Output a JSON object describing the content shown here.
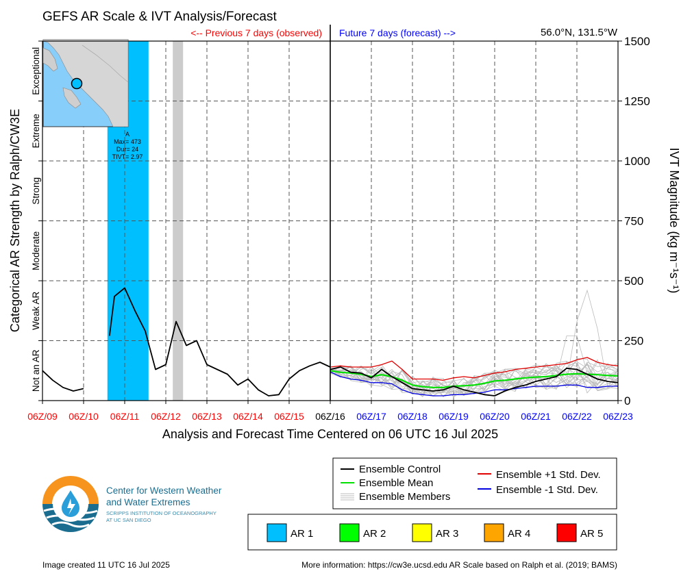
{
  "page": {
    "title": "GEFS AR Scale & IVT Analysis/Forecast",
    "location": "56.0°N, 131.5°W",
    "previous_label": "<-- Previous 7 days (observed)",
    "future_label": "Future 7 days (forecast) -->",
    "xlabel": "Analysis and Forecast Time Centered on 06 UTC 16 Jul 2025",
    "ylabel_left": "Categorical AR Strength by Ralph/CW3E",
    "ylabel_right": "IVT Magnitude (kg m⁻¹s⁻¹)",
    "created": "Image created 11 UTC 16 Jul 2025",
    "more_info": "More information: https://cw3e.ucsd.edu AR Scale based on Ralph et al. (2019; BAMS)",
    "logo_line1": "Center for Western Weather",
    "logo_line2": "and Water Extremes",
    "logo_line3": "SCRIPPS INSTITUTION OF OCEANOGRAPHY",
    "logo_line4": "AT UC SAN DIEGO"
  },
  "colors": {
    "ar1": "#00bfff",
    "ar2": "#00ff00",
    "ar3": "#ffff00",
    "ar4": "#ffa500",
    "ar5": "#ff0000",
    "control": "#000000",
    "mean": "#00e000",
    "members": "#bbbbbb",
    "plus_std": "#e00000",
    "minus_std": "#0000e0",
    "past_tick": "#ff0000",
    "future_tick": "#0000ff",
    "spread": "#cccccc"
  },
  "legend": {
    "control": "Ensemble Control",
    "mean": "Ensemble Mean",
    "members": "Ensemble Members",
    "plus_std": "Ensemble +1 Std. Dev.",
    "minus_std": "Ensemble -1 Std. Dev."
  },
  "ar_legend": [
    "AR 1",
    "AR 2",
    "AR 3",
    "AR 4",
    "AR 5"
  ],
  "annotation": {
    "label": "A",
    "max": "Max= 473",
    "dur": "Dur= 24",
    "tivt": "TIVT= 2.97"
  },
  "chart_data": {
    "type": "line",
    "xlabel": "Analysis and Forecast Time Centered on 06 UTC 16 Jul 2025",
    "ylabel": "IVT Magnitude (kg m⁻¹s⁻¹)",
    "xlim": [
      0,
      14
    ],
    "ylim": [
      0,
      1500
    ],
    "x_unit": "days from 06Z/09",
    "grid": true,
    "x_ticks": [
      {
        "x": 0,
        "label": "06Z/09",
        "period": "past"
      },
      {
        "x": 1,
        "label": "06Z/10",
        "period": "past"
      },
      {
        "x": 2,
        "label": "06Z/11",
        "period": "past"
      },
      {
        "x": 3,
        "label": "06Z/12",
        "period": "past"
      },
      {
        "x": 4,
        "label": "06Z/13",
        "period": "past"
      },
      {
        "x": 5,
        "label": "06Z/14",
        "period": "past"
      },
      {
        "x": 6,
        "label": "06Z/15",
        "period": "past"
      },
      {
        "x": 7,
        "label": "06Z/16",
        "period": "now"
      },
      {
        "x": 8,
        "label": "06Z/17",
        "period": "future"
      },
      {
        "x": 9,
        "label": "06Z/18",
        "period": "future"
      },
      {
        "x": 10,
        "label": "06Z/19",
        "period": "future"
      },
      {
        "x": 11,
        "label": "06Z/20",
        "period": "future"
      },
      {
        "x": 12,
        "label": "06Z/21",
        "period": "future"
      },
      {
        "x": 13,
        "label": "06Z/22",
        "period": "future"
      },
      {
        "x": 14,
        "label": "06Z/23",
        "period": "future"
      }
    ],
    "y_ticks": [
      0,
      250,
      500,
      750,
      1000,
      1250,
      1500
    ],
    "categories": [
      {
        "label": "Not an AR",
        "from": 0,
        "to": 250
      },
      {
        "label": "Weak AR",
        "from": 250,
        "to": 500
      },
      {
        "label": "Moderate",
        "from": 500,
        "to": 750
      },
      {
        "label": "Strong",
        "from": 750,
        "to": 1000
      },
      {
        "label": "Extreme",
        "from": 1000,
        "to": 1250
      },
      {
        "label": "Exceptional",
        "from": 1250,
        "to": 1500
      }
    ],
    "ar_events": [
      {
        "category": "AR 1",
        "start": 1.58,
        "end": 2.58
      }
    ],
    "gray_bands": [
      {
        "start": 3.17,
        "end": 3.42
      }
    ],
    "observed": [
      [
        [
          0,
          125
        ],
        [
          0.25,
          85
        ],
        [
          0.5,
          55
        ],
        [
          0.75,
          40
        ],
        [
          1.0,
          50
        ]
      ],
      [
        [
          1.63,
          270
        ],
        [
          1.75,
          435
        ],
        [
          2.0,
          470
        ],
        [
          2.25,
          375
        ],
        [
          2.5,
          290
        ],
        [
          2.75,
          130
        ],
        [
          3.0,
          150
        ],
        [
          3.25,
          330
        ],
        [
          3.5,
          230
        ],
        [
          3.75,
          250
        ],
        [
          4.0,
          150
        ],
        [
          4.5,
          110
        ],
        [
          4.75,
          65
        ],
        [
          5.0,
          90
        ],
        [
          5.25,
          45
        ],
        [
          5.5,
          20
        ],
        [
          5.75,
          25
        ],
        [
          6.0,
          90
        ],
        [
          6.25,
          125
        ],
        [
          6.5,
          145
        ],
        [
          6.75,
          160
        ],
        [
          7.0,
          140
        ]
      ]
    ],
    "series": [
      {
        "name": "Ensemble Control",
        "points": [
          [
            7.0,
            130
          ],
          [
            7.25,
            140
          ],
          [
            7.5,
            118
          ],
          [
            7.75,
            115
          ],
          [
            8.0,
            95
          ],
          [
            8.25,
            130
          ],
          [
            8.5,
            100
          ],
          [
            8.75,
            75
          ],
          [
            9.0,
            50
          ],
          [
            9.25,
            45
          ],
          [
            9.5,
            40
          ],
          [
            9.75,
            45
          ],
          [
            10.0,
            60
          ],
          [
            10.25,
            45
          ],
          [
            10.5,
            35
          ],
          [
            10.75,
            25
          ],
          [
            11.0,
            20
          ],
          [
            11.25,
            40
          ],
          [
            11.5,
            55
          ],
          [
            11.75,
            65
          ],
          [
            12.0,
            80
          ],
          [
            12.25,
            90
          ],
          [
            12.5,
            100
          ],
          [
            12.75,
            135
          ],
          [
            13.0,
            130
          ],
          [
            13.25,
            110
          ],
          [
            13.5,
            90
          ],
          [
            13.75,
            80
          ],
          [
            14.0,
            75
          ]
        ]
      },
      {
        "name": "Ensemble Mean",
        "points": [
          [
            7.0,
            125
          ],
          [
            7.25,
            118
          ],
          [
            7.5,
            115
          ],
          [
            7.75,
            110
          ],
          [
            8.0,
            100
          ],
          [
            8.25,
            108
          ],
          [
            8.5,
            100
          ],
          [
            8.75,
            85
          ],
          [
            9.0,
            65
          ],
          [
            9.25,
            58
          ],
          [
            9.5,
            55
          ],
          [
            9.75,
            55
          ],
          [
            10.0,
            60
          ],
          [
            10.25,
            62
          ],
          [
            10.5,
            65
          ],
          [
            10.75,
            72
          ],
          [
            11.0,
            82
          ],
          [
            11.25,
            85
          ],
          [
            11.5,
            90
          ],
          [
            11.75,
            95
          ],
          [
            12.0,
            98
          ],
          [
            12.25,
            100
          ],
          [
            12.5,
            105
          ],
          [
            12.75,
            110
          ],
          [
            13.0,
            112
          ],
          [
            13.25,
            110
          ],
          [
            13.5,
            108
          ],
          [
            13.75,
            105
          ],
          [
            14.0,
            103
          ]
        ]
      },
      {
        "name": "Ensemble +1 Std. Dev.",
        "points": [
          [
            7.0,
            140
          ],
          [
            7.25,
            145
          ],
          [
            7.5,
            140
          ],
          [
            7.75,
            140
          ],
          [
            8.0,
            140
          ],
          [
            8.25,
            150
          ],
          [
            8.5,
            165
          ],
          [
            8.75,
            130
          ],
          [
            9.0,
            90
          ],
          [
            9.25,
            90
          ],
          [
            9.5,
            90
          ],
          [
            9.75,
            85
          ],
          [
            10.0,
            95
          ],
          [
            10.25,
            100
          ],
          [
            10.5,
            95
          ],
          [
            10.75,
            105
          ],
          [
            11.0,
            115
          ],
          [
            11.25,
            120
          ],
          [
            11.5,
            130
          ],
          [
            11.75,
            135
          ],
          [
            12.0,
            140
          ],
          [
            12.25,
            145
          ],
          [
            12.5,
            150
          ],
          [
            12.75,
            155
          ],
          [
            13.0,
            170
          ],
          [
            13.25,
            180
          ],
          [
            13.5,
            160
          ],
          [
            13.75,
            150
          ],
          [
            14.0,
            145
          ]
        ]
      },
      {
        "name": "Ensemble -1 Std. Dev.",
        "points": [
          [
            7.0,
            120
          ],
          [
            7.25,
            100
          ],
          [
            7.5,
            90
          ],
          [
            7.75,
            85
          ],
          [
            8.0,
            75
          ],
          [
            8.25,
            75
          ],
          [
            8.5,
            70
          ],
          [
            8.75,
            45
          ],
          [
            9.0,
            30
          ],
          [
            9.25,
            25
          ],
          [
            9.5,
            20
          ],
          [
            9.75,
            20
          ],
          [
            10.0,
            25
          ],
          [
            10.25,
            25
          ],
          [
            10.5,
            30
          ],
          [
            10.75,
            35
          ],
          [
            11.0,
            45
          ],
          [
            11.25,
            45
          ],
          [
            11.5,
            50
          ],
          [
            11.75,
            55
          ],
          [
            12.0,
            60
          ],
          [
            12.25,
            60
          ],
          [
            12.5,
            60
          ],
          [
            12.75,
            65
          ],
          [
            13.0,
            65
          ],
          [
            13.25,
            55
          ],
          [
            13.5,
            55
          ],
          [
            13.75,
            60
          ],
          [
            14.0,
            60
          ]
        ]
      }
    ]
  }
}
